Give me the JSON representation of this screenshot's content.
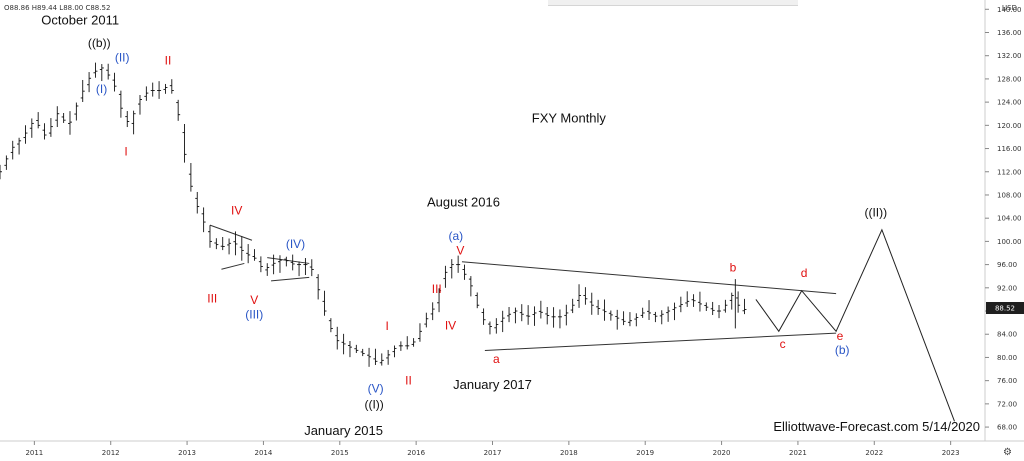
{
  "ohlc_readout": "O88.86 H89.44 L88.00 C88.52",
  "currency": "USD",
  "settings_icon": "gear-icon",
  "colors": {
    "red": "#e01010",
    "blue": "#2a56c6",
    "black": "#111111",
    "axis": "#cccccc"
  },
  "chart_data": {
    "type": "ohlc",
    "title": "FXY Monthly",
    "footer": "Elliottwave-Forecast.com 5/14/2020",
    "last_price_label": "88.52",
    "last_price": 88.52,
    "xlim": [
      2010.55,
      2023.45
    ],
    "ylim": [
      65.6,
      141.6
    ],
    "x_ticks": [
      {
        "v": 2011,
        "label": "2011"
      },
      {
        "v": 2012,
        "label": "2012"
      },
      {
        "v": 2013,
        "label": "2013"
      },
      {
        "v": 2014,
        "label": "2014"
      },
      {
        "v": 2015,
        "label": "2015"
      },
      {
        "v": 2016,
        "label": "2016"
      },
      {
        "v": 2017,
        "label": "2017"
      },
      {
        "v": 2018,
        "label": "2018"
      },
      {
        "v": 2019,
        "label": "2019"
      },
      {
        "v": 2020,
        "label": "2020"
      },
      {
        "v": 2021,
        "label": "2021"
      },
      {
        "v": 2022,
        "label": "2022"
      },
      {
        "v": 2023,
        "label": "2023"
      }
    ],
    "y_ticks": [
      {
        "v": 140,
        "label": "140.00"
      },
      {
        "v": 136,
        "label": "136.00"
      },
      {
        "v": 132,
        "label": "132.00"
      },
      {
        "v": 128,
        "label": "128.00"
      },
      {
        "v": 124,
        "label": "124.00"
      },
      {
        "v": 120,
        "label": "120.00"
      },
      {
        "v": 116,
        "label": "116.00"
      },
      {
        "v": 112,
        "label": "112.00"
      },
      {
        "v": 108,
        "label": "108.00"
      },
      {
        "v": 104,
        "label": "104.00"
      },
      {
        "v": 100,
        "label": "100.00"
      },
      {
        "v": 96,
        "label": "96.00"
      },
      {
        "v": 92,
        "label": "92.00"
      },
      {
        "v": 88,
        "label": "88.00"
      },
      {
        "v": 84,
        "label": "84.00"
      },
      {
        "v": 80,
        "label": "80.00"
      },
      {
        "v": 76,
        "label": "76.00"
      },
      {
        "v": 72,
        "label": "72.00"
      },
      {
        "v": 68,
        "label": "68.00"
      }
    ],
    "price_path": [
      [
        2010.55,
        112
      ],
      [
        2010.7,
        116
      ],
      [
        2010.85,
        118
      ],
      [
        2011.0,
        121
      ],
      [
        2011.15,
        118
      ],
      [
        2011.3,
        122
      ],
      [
        2011.45,
        120
      ],
      [
        2011.6,
        125
      ],
      [
        2011.75,
        129
      ],
      [
        2011.9,
        130
      ],
      [
        2012.0,
        128
      ],
      [
        2012.08,
        126
      ],
      [
        2012.15,
        122
      ],
      [
        2012.25,
        120
      ],
      [
        2012.35,
        124
      ],
      [
        2012.5,
        126
      ],
      [
        2012.65,
        126
      ],
      [
        2012.78,
        127
      ],
      [
        2012.9,
        121
      ],
      [
        2013.0,
        112
      ],
      [
        2013.1,
        107
      ],
      [
        2013.2,
        104
      ],
      [
        2013.3,
        100
      ],
      [
        2013.45,
        99
      ],
      [
        2013.6,
        100
      ],
      [
        2013.75,
        98
      ],
      [
        2013.9,
        97
      ],
      [
        2014.0,
        95
      ],
      [
        2014.1,
        96
      ],
      [
        2014.25,
        97
      ],
      [
        2014.4,
        96
      ],
      [
        2014.55,
        96
      ],
      [
        2014.65,
        95
      ],
      [
        2014.75,
        90
      ],
      [
        2014.85,
        86
      ],
      [
        2014.95,
        83
      ],
      [
        2015.1,
        82
      ],
      [
        2015.25,
        81
      ],
      [
        2015.4,
        80
      ],
      [
        2015.5,
        79
      ],
      [
        2015.6,
        80
      ],
      [
        2015.75,
        82
      ],
      [
        2015.9,
        82
      ],
      [
        2016.0,
        83
      ],
      [
        2016.1,
        86
      ],
      [
        2016.25,
        89
      ],
      [
        2016.35,
        94
      ],
      [
        2016.45,
        96
      ],
      [
        2016.55,
        96
      ],
      [
        2016.7,
        93
      ],
      [
        2016.8,
        89
      ],
      [
        2016.9,
        86
      ],
      [
        2017.0,
        85
      ],
      [
        2017.15,
        87
      ],
      [
        2017.3,
        88
      ],
      [
        2017.45,
        87
      ],
      [
        2017.6,
        88
      ],
      [
        2017.75,
        87
      ],
      [
        2017.9,
        87
      ],
      [
        2018.0,
        88
      ],
      [
        2018.15,
        91
      ],
      [
        2018.3,
        89
      ],
      [
        2018.45,
        88
      ],
      [
        2018.6,
        87
      ],
      [
        2018.75,
        86
      ],
      [
        2018.9,
        87
      ],
      [
        2019.0,
        88
      ],
      [
        2019.15,
        87
      ],
      [
        2019.3,
        88
      ],
      [
        2019.45,
        89
      ],
      [
        2019.6,
        90
      ],
      [
        2019.75,
        89
      ],
      [
        2019.9,
        88
      ],
      [
        2020.0,
        88
      ],
      [
        2020.15,
        91
      ],
      [
        2020.25,
        88
      ],
      [
        2020.35,
        88.52
      ]
    ],
    "projection": [
      [
        2020.45,
        90
      ],
      [
        2020.75,
        84.5
      ],
      [
        2021.05,
        91.5
      ],
      [
        2021.5,
        84.5
      ],
      [
        2022.1,
        102
      ],
      [
        2023.05,
        69
      ]
    ],
    "trendlines": [
      {
        "from": [
          2016.6,
          96.5
        ],
        "to": [
          2021.5,
          91
        ]
      },
      {
        "from": [
          2016.9,
          81.2
        ],
        "to": [
          2021.5,
          84.2
        ]
      },
      {
        "from": [
          2013.3,
          102.8
        ],
        "to": [
          2013.85,
          100.2
        ]
      },
      {
        "from": [
          2013.45,
          95.2
        ],
        "to": [
          2013.75,
          96.2
        ]
      },
      {
        "from": [
          2014.05,
          97.2
        ],
        "to": [
          2014.6,
          96.2
        ]
      },
      {
        "from": [
          2014.1,
          93.2
        ],
        "to": [
          2014.6,
          93.8
        ]
      }
    ],
    "labels": [
      {
        "t": "October 2011",
        "x": 2011.6,
        "y": 137.4,
        "c": "black",
        "s": 13
      },
      {
        "t": "((b))",
        "x": 2011.85,
        "y": 133.5,
        "c": "black",
        "s": 12
      },
      {
        "t": "(II)",
        "x": 2012.15,
        "y": 131.0,
        "c": "blue",
        "s": 12
      },
      {
        "t": "(I)",
        "x": 2011.88,
        "y": 125.6,
        "c": "blue",
        "s": 12
      },
      {
        "t": "II",
        "x": 2012.75,
        "y": 130.5,
        "c": "red",
        "s": 12
      },
      {
        "t": "I",
        "x": 2012.2,
        "y": 114.8,
        "c": "red",
        "s": 12
      },
      {
        "t": "IV",
        "x": 2013.65,
        "y": 104.6,
        "c": "red",
        "s": 12
      },
      {
        "t": "III",
        "x": 2013.33,
        "y": 89.5,
        "c": "red",
        "s": 12
      },
      {
        "t": "V",
        "x": 2013.88,
        "y": 89.2,
        "c": "red",
        "s": 12
      },
      {
        "t": "(III)",
        "x": 2013.88,
        "y": 86.7,
        "c": "blue",
        "s": 12
      },
      {
        "t": "(IV)",
        "x": 2014.42,
        "y": 98.9,
        "c": "blue",
        "s": 12
      },
      {
        "t": "I",
        "x": 2015.62,
        "y": 84.7,
        "c": "red",
        "s": 12
      },
      {
        "t": "II",
        "x": 2015.9,
        "y": 75.3,
        "c": "red",
        "s": 12
      },
      {
        "t": "(V)",
        "x": 2015.47,
        "y": 74.0,
        "c": "blue",
        "s": 12
      },
      {
        "t": "((I))",
        "x": 2015.45,
        "y": 71.2,
        "c": "black",
        "s": 12
      },
      {
        "t": "January 2015",
        "x": 2015.05,
        "y": 66.6,
        "c": "black",
        "s": 13
      },
      {
        "t": "August 2016",
        "x": 2016.62,
        "y": 106.0,
        "c": "black",
        "s": 13
      },
      {
        "t": "(a)",
        "x": 2016.52,
        "y": 100.2,
        "c": "blue",
        "s": 12
      },
      {
        "t": "V",
        "x": 2016.58,
        "y": 97.7,
        "c": "red",
        "s": 12
      },
      {
        "t": "III",
        "x": 2016.27,
        "y": 91.1,
        "c": "red",
        "s": 12
      },
      {
        "t": "IV",
        "x": 2016.45,
        "y": 84.8,
        "c": "red",
        "s": 12
      },
      {
        "t": "a",
        "x": 2017.05,
        "y": 79.0,
        "c": "red",
        "s": 12
      },
      {
        "t": "January 2017",
        "x": 2017.0,
        "y": 74.6,
        "c": "black",
        "s": 13
      },
      {
        "t": "FXY Monthly",
        "x": 2018.0,
        "y": 120.5,
        "c": "black",
        "s": 13
      },
      {
        "t": "b",
        "x": 2020.15,
        "y": 94.8,
        "c": "red",
        "s": 12
      },
      {
        "t": "d",
        "x": 2021.08,
        "y": 93.9,
        "c": "red",
        "s": 12
      },
      {
        "t": "c",
        "x": 2020.8,
        "y": 81.6,
        "c": "red",
        "s": 12
      },
      {
        "t": "e",
        "x": 2021.55,
        "y": 83.0,
        "c": "red",
        "s": 12
      },
      {
        "t": "(b)",
        "x": 2021.58,
        "y": 80.6,
        "c": "blue",
        "s": 12
      },
      {
        "t": "((II))",
        "x": 2022.02,
        "y": 104.3,
        "c": "black",
        "s": 12
      }
    ]
  }
}
